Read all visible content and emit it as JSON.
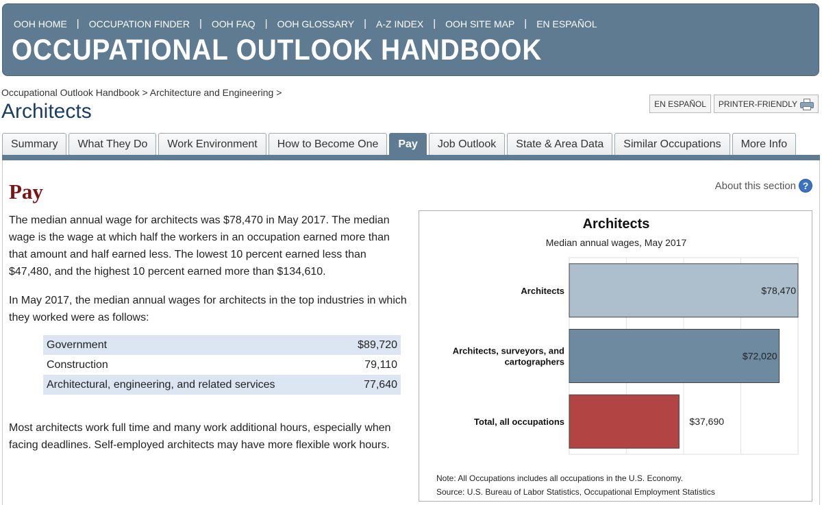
{
  "header": {
    "nav": [
      "OOH HOME",
      "OCCUPATION FINDER",
      "OOH FAQ",
      "OOH GLOSSARY",
      "A-Z INDEX",
      "OOH SITE MAP",
      "EN ESPAÑOL"
    ],
    "title": "OCCUPATIONAL OUTLOOK HANDBOOK"
  },
  "breadcrumb": {
    "part1": "Occupational Outlook Handbook",
    "sep": ">",
    "part2": "Architecture and Engineering"
  },
  "page_title": "Architects",
  "buttons": {
    "espanol": "EN ESPAÑOL",
    "printer": "PRINTER-FRIENDLY"
  },
  "tabs": [
    "Summary",
    "What They Do",
    "Work Environment",
    "How to Become One",
    "Pay",
    "Job Outlook",
    "State & Area Data",
    "Similar Occupations",
    "More Info"
  ],
  "active_tab": "Pay",
  "section": {
    "heading": "Pay",
    "about": "About this section",
    "p1": "The median annual wage for architects was $78,470 in May 2017. The median wage is the wage at which half the workers in an occupation earned more than that amount and half earned less. The lowest 10 percent earned less than $47,480, and the highest 10 percent earned more than $134,610.",
    "p2": "In May 2017, the median annual wages for architects in the top industries in which they worked were as follows:",
    "industries": [
      {
        "name": "Government",
        "value": "$89,720"
      },
      {
        "name": "Construction",
        "value": "79,110"
      },
      {
        "name": "Architectural, engineering, and related services",
        "value": "77,640"
      }
    ],
    "p3": "Most architects work full time and many work additional hours, especially when facing deadlines. Self-employed architects may have more flexible work hours."
  },
  "chart_data": {
    "type": "bar",
    "orientation": "horizontal",
    "title": "Architects",
    "subtitle": "Median annual wages, May 2017",
    "categories": [
      "Architects",
      "Architects, surveyors, and cartographers",
      "Total, all occupations"
    ],
    "category_lines": [
      [
        "Architects"
      ],
      [
        "Architects, surveyors, and",
        "cartographers"
      ],
      [
        "Total, all occupations"
      ]
    ],
    "values": [
      78470,
      72020,
      37690
    ],
    "value_labels": [
      "$78,470",
      "$72,020",
      "$37,690"
    ],
    "colors": [
      "#adbfcc",
      "#6d8aa0",
      "#b24444"
    ],
    "xlim": [
      0,
      78470
    ],
    "grid": true,
    "note": "Note: All Occupations includes all occupations in the U.S. Economy.",
    "source": "Source: U.S. Bureau of Labor Statistics, Occupational Employment Statistics"
  }
}
